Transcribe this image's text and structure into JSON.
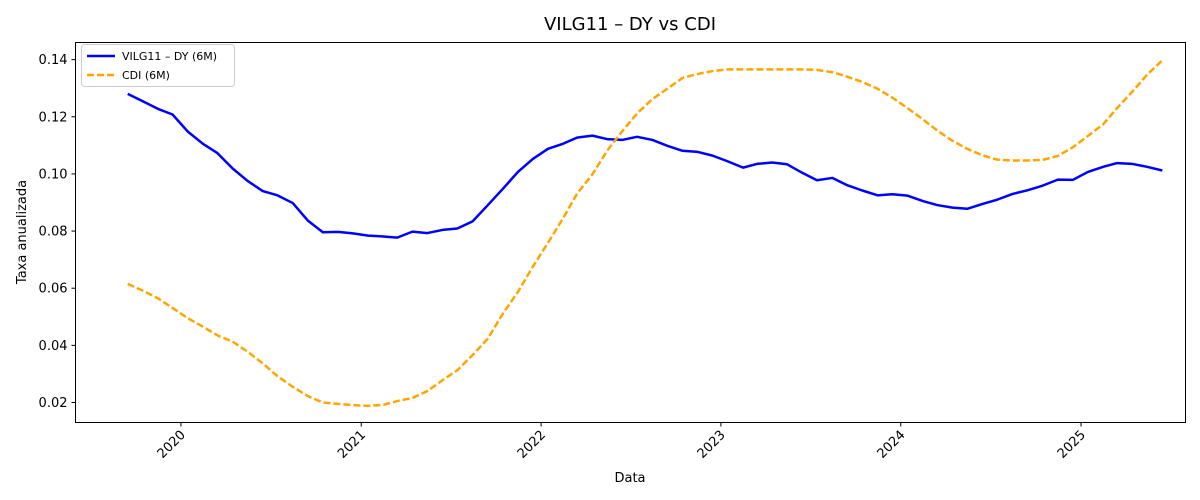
{
  "chart_data": {
    "type": "line",
    "title": "VILG11 – DY vs CDI",
    "xlabel": "Data",
    "ylabel": "Taxa anualizada",
    "x_ticks": [
      "2020",
      "2021",
      "2022",
      "2023",
      "2024",
      "2025"
    ],
    "y_ticks": [
      "0.02",
      "0.04",
      "0.06",
      "0.08",
      "0.10",
      "0.12",
      "0.14"
    ],
    "xlim": [
      "2019-06-01",
      "2025-08-01"
    ],
    "ylim": [
      0.013,
      0.146
    ],
    "legend_position": "upper-left",
    "grid": false,
    "series": [
      {
        "name": "VILG11 – DY (6M)",
        "color": "#0000ff",
        "style": "solid",
        "points": [
          [
            "2019-09",
            0.128
          ],
          [
            "2019-10",
            0.1255
          ],
          [
            "2019-11",
            0.1228
          ],
          [
            "2019-12",
            0.1208
          ],
          [
            "2020-01",
            0.1148
          ],
          [
            "2020-02",
            0.1105
          ],
          [
            "2020-03",
            0.1073
          ],
          [
            "2020-04",
            0.1019
          ],
          [
            "2020-05",
            0.0976
          ],
          [
            "2020-06",
            0.094
          ],
          [
            "2020-07",
            0.0925
          ],
          [
            "2020-08",
            0.0898
          ],
          [
            "2020-09",
            0.0836
          ],
          [
            "2020-10",
            0.0796
          ],
          [
            "2020-11",
            0.0797
          ],
          [
            "2020-12",
            0.0792
          ],
          [
            "2021-01",
            0.0784
          ],
          [
            "2021-02",
            0.0781
          ],
          [
            "2021-03",
            0.0777
          ],
          [
            "2021-04",
            0.0798
          ],
          [
            "2021-05",
            0.0793
          ],
          [
            "2021-06",
            0.0804
          ],
          [
            "2021-07",
            0.0809
          ],
          [
            "2021-08",
            0.0834
          ],
          [
            "2021-09",
            0.0891
          ],
          [
            "2021-10",
            0.0947
          ],
          [
            "2021-11",
            0.1007
          ],
          [
            "2021-12",
            0.1052
          ],
          [
            "2022-01",
            0.1088
          ],
          [
            "2022-02",
            0.1106
          ],
          [
            "2022-03",
            0.1127
          ],
          [
            "2022-04",
            0.1134
          ],
          [
            "2022-05",
            0.1122
          ],
          [
            "2022-06",
            0.1119
          ],
          [
            "2022-07",
            0.113
          ],
          [
            "2022-08",
            0.1119
          ],
          [
            "2022-09",
            0.1098
          ],
          [
            "2022-10",
            0.1081
          ],
          [
            "2022-11",
            0.1077
          ],
          [
            "2022-12",
            0.1064
          ],
          [
            "2023-01",
            0.1044
          ],
          [
            "2023-02",
            0.1022
          ],
          [
            "2023-03",
            0.1035
          ],
          [
            "2023-04",
            0.104
          ],
          [
            "2023-05",
            0.1034
          ],
          [
            "2023-06",
            0.1004
          ],
          [
            "2023-07",
            0.0978
          ],
          [
            "2023-08",
            0.0986
          ],
          [
            "2023-09",
            0.096
          ],
          [
            "2023-10",
            0.0942
          ],
          [
            "2023-11",
            0.0925
          ],
          [
            "2023-12",
            0.0929
          ],
          [
            "2024-01",
            0.0924
          ],
          [
            "2024-02",
            0.0905
          ],
          [
            "2024-03",
            0.0891
          ],
          [
            "2024-04",
            0.0882
          ],
          [
            "2024-05",
            0.0878
          ],
          [
            "2024-06",
            0.0895
          ],
          [
            "2024-07",
            0.091
          ],
          [
            "2024-08",
            0.093
          ],
          [
            "2024-09",
            0.0943
          ],
          [
            "2024-10",
            0.0959
          ],
          [
            "2024-11",
            0.098
          ],
          [
            "2024-12",
            0.0979
          ],
          [
            "2025-01",
            0.1007
          ],
          [
            "2025-02",
            0.1025
          ],
          [
            "2025-03",
            0.1038
          ],
          [
            "2025-04",
            0.1035
          ],
          [
            "2025-05",
            0.1025
          ],
          [
            "2025-06",
            0.1012
          ]
        ]
      },
      {
        "name": "CDI (6M)",
        "color": "#ffa500",
        "style": "dashed",
        "points": [
          [
            "2019-09",
            0.0615
          ],
          [
            "2019-10",
            0.0592
          ],
          [
            "2019-11",
            0.0565
          ],
          [
            "2019-12",
            0.0531
          ],
          [
            "2020-01",
            0.0495
          ],
          [
            "2020-02",
            0.0465
          ],
          [
            "2020-03",
            0.0435
          ],
          [
            "2020-04",
            0.0413
          ],
          [
            "2020-05",
            0.0378
          ],
          [
            "2020-06",
            0.0337
          ],
          [
            "2020-07",
            0.0292
          ],
          [
            "2020-08",
            0.0255
          ],
          [
            "2020-09",
            0.0222
          ],
          [
            "2020-10",
            0.02
          ],
          [
            "2020-11",
            0.0195
          ],
          [
            "2020-12",
            0.0191
          ],
          [
            "2021-01",
            0.0188
          ],
          [
            "2021-02",
            0.0192
          ],
          [
            "2021-03",
            0.0205
          ],
          [
            "2021-04",
            0.0216
          ],
          [
            "2021-05",
            0.024
          ],
          [
            "2021-06",
            0.0278
          ],
          [
            "2021-07",
            0.0313
          ],
          [
            "2021-08",
            0.0366
          ],
          [
            "2021-09",
            0.0424
          ],
          [
            "2021-10",
            0.051
          ],
          [
            "2021-11",
            0.0587
          ],
          [
            "2021-12",
            0.0675
          ],
          [
            "2022-01",
            0.0759
          ],
          [
            "2022-02",
            0.0846
          ],
          [
            "2022-03",
            0.0931
          ],
          [
            "2022-04",
            0.0998
          ],
          [
            "2022-05",
            0.1081
          ],
          [
            "2022-06",
            0.115
          ],
          [
            "2022-07",
            0.1212
          ],
          [
            "2022-08",
            0.1262
          ],
          [
            "2022-09",
            0.1299
          ],
          [
            "2022-10",
            0.1336
          ],
          [
            "2022-11",
            0.135
          ],
          [
            "2022-12",
            0.136
          ],
          [
            "2023-01",
            0.1366
          ],
          [
            "2023-02",
            0.1366
          ],
          [
            "2023-03",
            0.1366
          ],
          [
            "2023-04",
            0.1366
          ],
          [
            "2023-05",
            0.1366
          ],
          [
            "2023-06",
            0.1366
          ],
          [
            "2023-07",
            0.1364
          ],
          [
            "2023-08",
            0.1356
          ],
          [
            "2023-09",
            0.134
          ],
          [
            "2023-10",
            0.1322
          ],
          [
            "2023-11",
            0.1298
          ],
          [
            "2023-12",
            0.1267
          ],
          [
            "2024-01",
            0.123
          ],
          [
            "2024-02",
            0.1191
          ],
          [
            "2024-03",
            0.1152
          ],
          [
            "2024-04",
            0.1116
          ],
          [
            "2024-05",
            0.1088
          ],
          [
            "2024-06",
            0.1065
          ],
          [
            "2024-07",
            0.105
          ],
          [
            "2024-08",
            0.1047
          ],
          [
            "2024-09",
            0.1047
          ],
          [
            "2024-10",
            0.1049
          ],
          [
            "2024-11",
            0.1063
          ],
          [
            "2024-12",
            0.1093
          ],
          [
            "2025-01",
            0.1133
          ],
          [
            "2025-02",
            0.1174
          ],
          [
            "2025-03",
            0.123
          ],
          [
            "2025-04",
            0.1288
          ],
          [
            "2025-05",
            0.1347
          ],
          [
            "2025-06",
            0.1398
          ]
        ]
      }
    ]
  }
}
